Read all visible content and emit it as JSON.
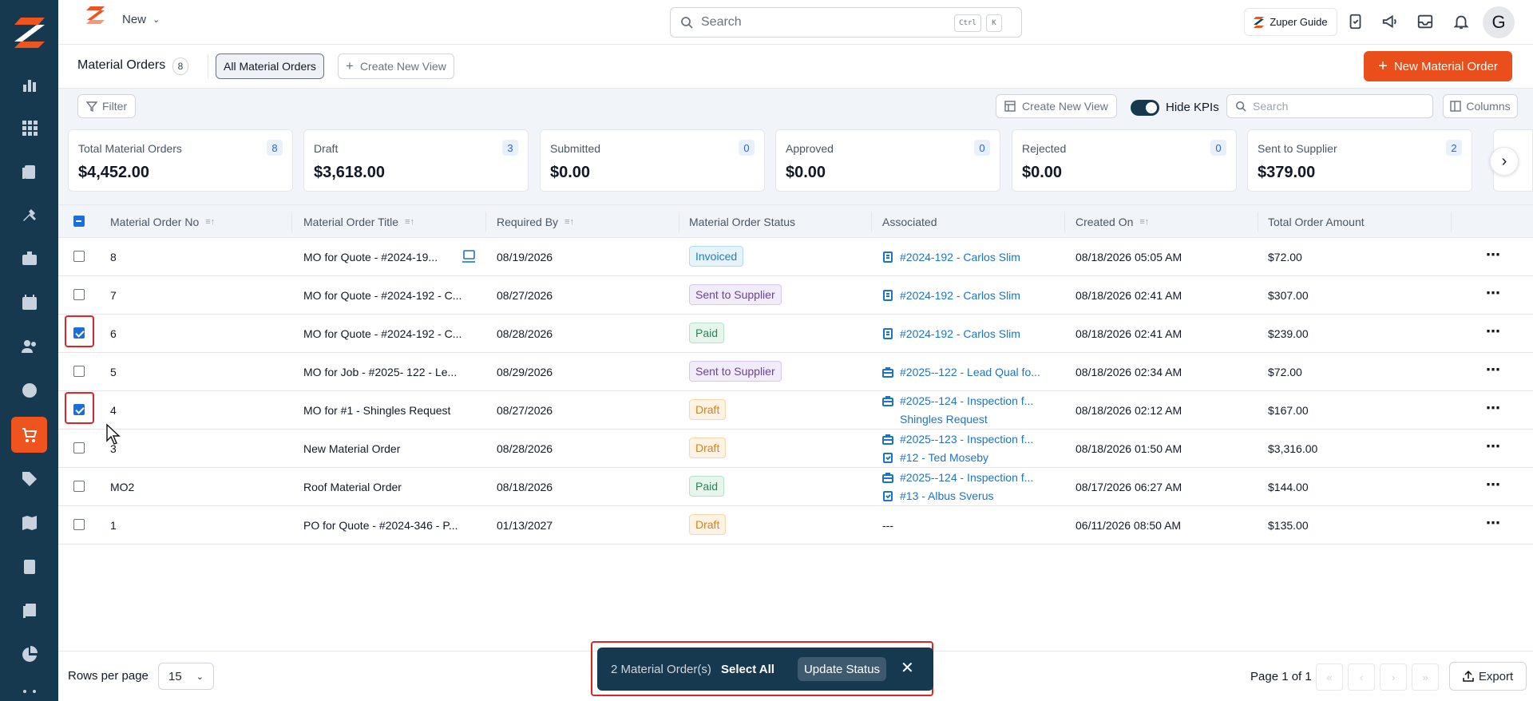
{
  "app": {
    "new_label": "New"
  },
  "search": {
    "placeholder": "Search",
    "kbd_ctrl": "Ctrl",
    "kbd_k": "K"
  },
  "guide_label": "Zuper Guide",
  "avatar_initial": "G",
  "page": {
    "title": "Material Orders",
    "count": "8",
    "active_view": "All Material Orders",
    "create_view": "Create New View",
    "new_button": "New Material Order"
  },
  "toolbar": {
    "filter": "Filter",
    "create_view": "Create New View",
    "hide_kpis": "Hide KPIs",
    "search_placeholder": "Search",
    "columns": "Columns"
  },
  "kpis": [
    {
      "label": "Total Material Orders",
      "count": "8",
      "value": "$4,452.00"
    },
    {
      "label": "Draft",
      "count": "3",
      "value": "$3,618.00"
    },
    {
      "label": "Submitted",
      "count": "0",
      "value": "$0.00"
    },
    {
      "label": "Approved",
      "count": "0",
      "value": "$0.00"
    },
    {
      "label": "Rejected",
      "count": "0",
      "value": "$0.00"
    },
    {
      "label": "Sent to Supplier",
      "count": "2",
      "value": "$379.00"
    }
  ],
  "columns": [
    "Material Order No",
    "Material Order Title",
    "Required By",
    "Material Order Status",
    "Associated",
    "Created On",
    "Total Order Amount"
  ],
  "rows": [
    {
      "no": "8",
      "title": "MO for Quote - #2024-19...",
      "required": "08/19/2026",
      "status": "Invoiced",
      "assoc1": "#2024-192 - Carlos Slim",
      "assoc2": "",
      "created": "08/18/2026 05:05 AM",
      "amount": "$72.00",
      "checked": false
    },
    {
      "no": "7",
      "title": "MO for Quote - #2024-192 - C...",
      "required": "08/27/2026",
      "status": "Sent to Supplier",
      "assoc1": "#2024-192 - Carlos Slim",
      "assoc2": "",
      "created": "08/18/2026 02:41 AM",
      "amount": "$307.00",
      "checked": false
    },
    {
      "no": "6",
      "title": "MO for Quote - #2024-192 - C...",
      "required": "08/28/2026",
      "status": "Paid",
      "assoc1": "#2024-192 - Carlos Slim",
      "assoc2": "",
      "created": "08/18/2026 02:41 AM",
      "amount": "$239.00",
      "checked": true
    },
    {
      "no": "5",
      "title": "MO for Job - #2025- 122 - Le...",
      "required": "08/29/2026",
      "status": "Sent to Supplier",
      "assoc1": "#2025--122 - Lead Qual fo...",
      "assoc2": "",
      "created": "08/18/2026 02:34 AM",
      "amount": "$72.00",
      "checked": false
    },
    {
      "no": "4",
      "title": "MO for #1 - Shingles Request",
      "required": "08/27/2026",
      "status": "Draft",
      "assoc1": "#2025--124 - Inspection f...",
      "assoc2": "Shingles Request",
      "created": "08/18/2026 02:12 AM",
      "amount": "$167.00",
      "checked": true
    },
    {
      "no": "3",
      "title": "New Material Order",
      "required": "08/28/2026",
      "status": "Draft",
      "assoc1": "#2025--123 - Inspection f...",
      "assoc2": "#12 - Ted Moseby",
      "created": "08/18/2026 01:50 AM",
      "amount": "$3,316.00",
      "checked": false
    },
    {
      "no": "MO2",
      "title": "Roof Material Order",
      "required": "08/18/2026",
      "status": "Paid",
      "assoc1": "#2025--124 - Inspection f...",
      "assoc2": "#13 - Albus Sverus",
      "created": "08/17/2026 06:27 AM",
      "amount": "$144.00",
      "checked": false
    },
    {
      "no": "1",
      "title": "PO for Quote - #2024-346 - P...",
      "required": "01/13/2027",
      "status": "Draft",
      "assoc1": "---",
      "assoc2": "",
      "created": "06/11/2026 08:50 AM",
      "amount": "$135.00",
      "checked": false
    }
  ],
  "footer": {
    "rows_per_page": "Rows per page",
    "rows_value": "15",
    "page_info": "Page 1 of 1",
    "export": "Export"
  },
  "bulk": {
    "selected": "2 Material Order(s)",
    "select_all": "Select All",
    "update_status": "Update Status"
  },
  "colors": {
    "accent": "#e94e1b",
    "sidebar": "#17394f",
    "link": "#1d74c4"
  }
}
